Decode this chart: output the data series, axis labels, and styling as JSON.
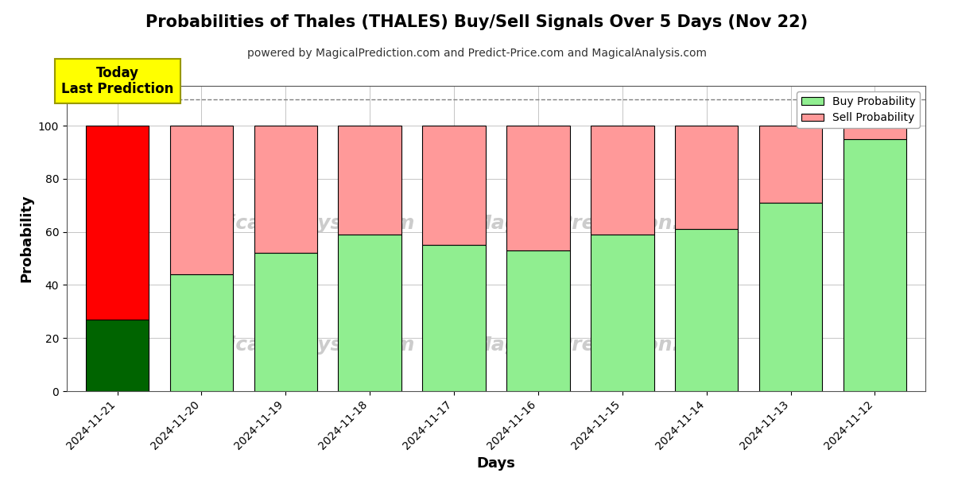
{
  "title": "Probabilities of Thales (THALES) Buy/Sell Signals Over 5 Days (Nov 22)",
  "subtitle": "powered by MagicalPrediction.com and Predict-Price.com and MagicalAnalysis.com",
  "xlabel": "Days",
  "ylabel": "Probability",
  "dates": [
    "2024-11-21",
    "2024-11-20",
    "2024-11-19",
    "2024-11-18",
    "2024-11-17",
    "2024-11-16",
    "2024-11-15",
    "2024-11-14",
    "2024-11-13",
    "2024-11-12"
  ],
  "buy_values": [
    27,
    44,
    52,
    59,
    55,
    53,
    59,
    61,
    71,
    95
  ],
  "sell_values": [
    73,
    56,
    48,
    41,
    45,
    47,
    41,
    39,
    29,
    5
  ],
  "buy_colors_special": [
    "#006400",
    "#90EE90",
    "#90EE90",
    "#90EE90",
    "#90EE90",
    "#90EE90",
    "#90EE90",
    "#90EE90",
    "#90EE90",
    "#90EE90"
  ],
  "sell_colors_special": [
    "#FF0000",
    "#FF9999",
    "#FF9999",
    "#FF9999",
    "#FF9999",
    "#FF9999",
    "#FF9999",
    "#FF9999",
    "#FF9999",
    "#FF9999"
  ],
  "legend_buy_color": "#90EE90",
  "legend_sell_color": "#FF9999",
  "annotation_text": "Today\nLast Prediction",
  "annotation_bg": "#FFFF00",
  "dashed_line_y": 110,
  "ylim": [
    0,
    115
  ],
  "yticks": [
    0,
    20,
    40,
    60,
    80,
    100
  ],
  "watermark_color": "#cccccc",
  "background_color": "#ffffff",
  "grid_color": "#bbbbbb",
  "bar_edge_color": "#000000",
  "bar_width": 0.75
}
